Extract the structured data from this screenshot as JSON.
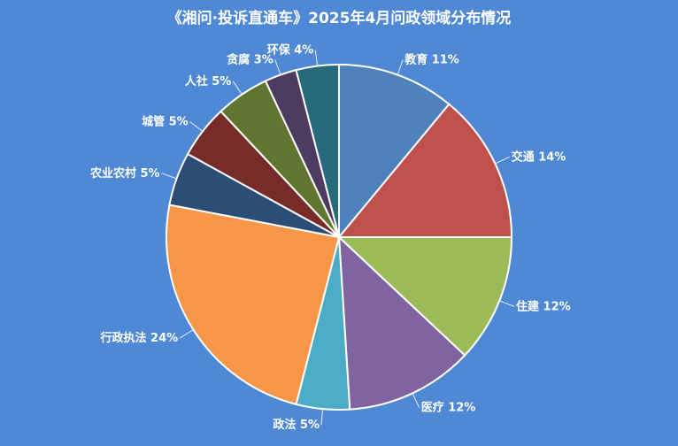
{
  "chart_data": {
    "type": "pie",
    "title": "《湘问·投诉直通车》2025年4月问政领域分布情况",
    "slices": [
      {
        "label": "教育",
        "value": 11,
        "color": "#4f81bd"
      },
      {
        "label": "交通",
        "value": 14,
        "color": "#c0504d"
      },
      {
        "label": "住建",
        "value": 12,
        "color": "#9bbb59"
      },
      {
        "label": "医疗",
        "value": 12,
        "color": "#8064a2"
      },
      {
        "label": "政法",
        "value": 5,
        "color": "#4bacc6"
      },
      {
        "label": "行政执法",
        "value": 24,
        "color": "#f79646"
      },
      {
        "label": "农业农村",
        "value": 5,
        "color": "#2c4d75"
      },
      {
        "label": "城管",
        "value": 5,
        "color": "#772c2a"
      },
      {
        "label": "人社",
        "value": 5,
        "color": "#5f7530"
      },
      {
        "label": "贪腐",
        "value": 3,
        "color": "#4d3b62"
      },
      {
        "label": "环保",
        "value": 4,
        "color": "#276a7c"
      }
    ],
    "value_suffix": "%",
    "legend": "none",
    "start_angle_deg": 0,
    "direction": "clockwise"
  }
}
